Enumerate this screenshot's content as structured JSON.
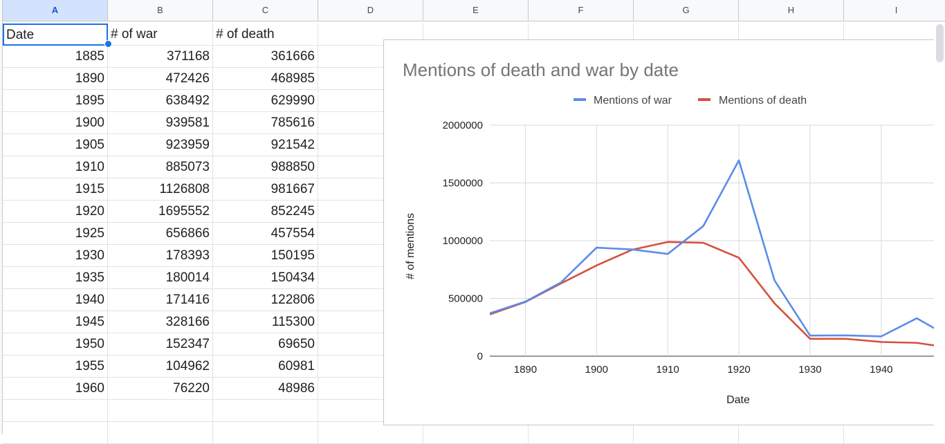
{
  "columns": [
    "A",
    "B",
    "C",
    "D",
    "E",
    "F",
    "G",
    "H",
    "I"
  ],
  "headers": [
    "Date",
    "# of war",
    "# of death"
  ],
  "rows": [
    [
      "1885",
      "371168",
      "361666"
    ],
    [
      "1890",
      "472426",
      "468985"
    ],
    [
      "1895",
      "638492",
      "629990"
    ],
    [
      "1900",
      "939581",
      "785616"
    ],
    [
      "1905",
      "923959",
      "921542"
    ],
    [
      "1910",
      "885073",
      "988850"
    ],
    [
      "1915",
      "1126808",
      "981667"
    ],
    [
      "1920",
      "1695552",
      "852245"
    ],
    [
      "1925",
      "656866",
      "457554"
    ],
    [
      "1930",
      "178393",
      "150195"
    ],
    [
      "1935",
      "180014",
      "150434"
    ],
    [
      "1940",
      "171416",
      "122806"
    ],
    [
      "1945",
      "328166",
      "115300"
    ],
    [
      "1950",
      "152347",
      "69650"
    ],
    [
      "1955",
      "104962",
      "60981"
    ],
    [
      "1960",
      "76220",
      "48986"
    ]
  ],
  "colors": {
    "war": "#5a8cea",
    "death": "#d6503d",
    "selection": "#1a73e8",
    "grid": "#d9d9d9"
  },
  "chart_data": {
    "type": "line",
    "title": "Mentions of death and war by date",
    "xlabel": "Date",
    "ylabel": "# of mentions",
    "legend_position": "top",
    "x": [
      1885,
      1890,
      1895,
      1900,
      1905,
      1910,
      1915,
      1920,
      1925,
      1930,
      1935,
      1940,
      1945,
      1950,
      1955,
      1960
    ],
    "series": [
      {
        "name": "Mentions of war",
        "values": [
          371168,
          472426,
          638492,
          939581,
          923959,
          885073,
          1126808,
          1695552,
          656866,
          178393,
          180014,
          171416,
          328166,
          152347,
          104962,
          76220
        ]
      },
      {
        "name": "Mentions of death",
        "values": [
          361666,
          468985,
          629990,
          785616,
          921542,
          988850,
          981667,
          852245,
          457554,
          150195,
          150434,
          122806,
          115300,
          69650,
          60981,
          48986
        ]
      }
    ],
    "visible_xlim": [
      1885,
      1947.5
    ],
    "ylim": [
      0,
      2000000
    ],
    "x_ticks": [
      1890,
      1900,
      1910,
      1920,
      1930,
      1940
    ],
    "y_ticks": [
      0,
      500000,
      1000000,
      1500000,
      2000000
    ],
    "grid": true
  }
}
